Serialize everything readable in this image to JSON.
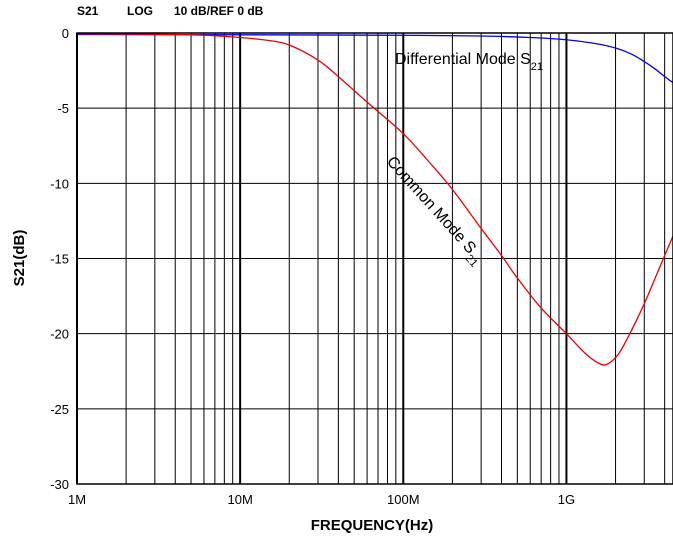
{
  "chart_data": {
    "type": "line",
    "header": {
      "param": "S21",
      "format": "LOG",
      "scale": "10 dB/REF 0 dB"
    },
    "xlabel": "FREQUENCY(Hz)",
    "ylabel": "S21(dB)",
    "x_scale": "log",
    "xlim": [
      1000000,
      4500000000
    ],
    "ylim": [
      -30,
      0
    ],
    "grid": true,
    "x_ticks": [
      {
        "value": 1000000,
        "label": "1M"
      },
      {
        "value": 10000000,
        "label": "10M"
      },
      {
        "value": 100000000,
        "label": "100M"
      },
      {
        "value": 1000000000,
        "label": "1G"
      }
    ],
    "y_ticks": [
      {
        "value": 0,
        "label": "0"
      },
      {
        "value": -5,
        "label": "-5"
      },
      {
        "value": -10,
        "label": "-10"
      },
      {
        "value": -15,
        "label": "-15"
      },
      {
        "value": -20,
        "label": "-20"
      },
      {
        "value": -25,
        "label": "-25"
      },
      {
        "value": -30,
        "label": "-30"
      }
    ],
    "series": [
      {
        "name": "Differential Mode S",
        "name_sub": "21",
        "color": "#0000ee",
        "points": [
          [
            1000000,
            -0.1
          ],
          [
            10000000,
            -0.12
          ],
          [
            100000000,
            -0.15
          ],
          [
            300000000,
            -0.2
          ],
          [
            600000000,
            -0.3
          ],
          [
            1000000000,
            -0.45
          ],
          [
            1500000000,
            -0.7
          ],
          [
            2000000000,
            -1.0
          ],
          [
            2500000000,
            -1.4
          ],
          [
            3000000000,
            -1.9
          ],
          [
            3500000000,
            -2.4
          ],
          [
            4000000000,
            -2.9
          ],
          [
            4500000000,
            -3.3
          ]
        ]
      },
      {
        "name": "Common Mode S",
        "name_sub": "21",
        "color": "#ee0000",
        "points": [
          [
            1000000,
            -0.05
          ],
          [
            3000000,
            -0.08
          ],
          [
            6000000,
            -0.15
          ],
          [
            10000000,
            -0.3
          ],
          [
            15000000,
            -0.5
          ],
          [
            20000000,
            -0.8
          ],
          [
            30000000,
            -1.8
          ],
          [
            40000000,
            -2.9
          ],
          [
            60000000,
            -4.6
          ],
          [
            100000000,
            -6.7
          ],
          [
            150000000,
            -8.8
          ],
          [
            200000000,
            -10.4
          ],
          [
            300000000,
            -13.0
          ],
          [
            400000000,
            -14.8
          ],
          [
            500000000,
            -16.3
          ],
          [
            700000000,
            -18.3
          ],
          [
            1000000000,
            -20.0
          ],
          [
            1300000000,
            -21.3
          ],
          [
            1600000000,
            -22.0
          ],
          [
            1800000000,
            -22.0
          ],
          [
            2100000000,
            -21.3
          ],
          [
            2500000000,
            -19.8
          ],
          [
            3000000000,
            -18.0
          ],
          [
            3500000000,
            -16.3
          ],
          [
            4000000000,
            -14.8
          ],
          [
            4500000000,
            -13.5
          ]
        ]
      }
    ]
  }
}
